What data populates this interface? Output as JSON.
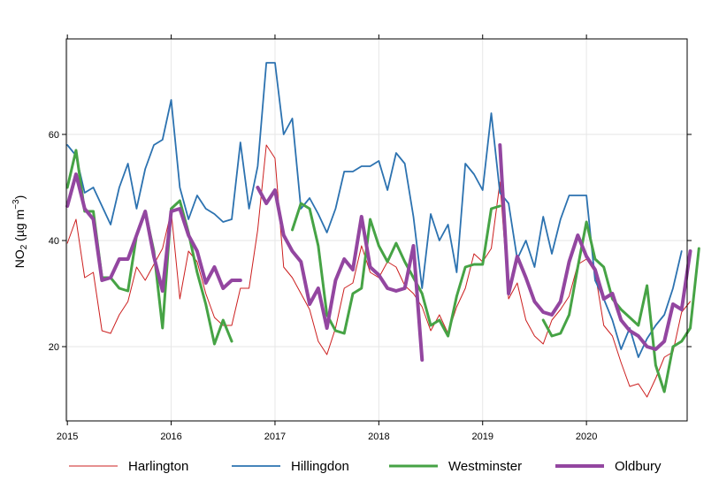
{
  "chart_data": {
    "type": "line",
    "title": "",
    "xlabel": "",
    "ylabel": {
      "main": "NO",
      "sub": "2",
      "unit_pre": " (µg m",
      "sup": "−3",
      "unit_post": ")"
    },
    "xlim": [
      2014.99,
      2020.97
    ],
    "ylim": [
      6,
      78
    ],
    "grid": true,
    "legend_position": "bottom",
    "x_ticks": [
      {
        "value": 2015,
        "label": "2015"
      },
      {
        "value": 2016,
        "label": "2016"
      },
      {
        "value": 2017,
        "label": "2017"
      },
      {
        "value": 2018,
        "label": "2018"
      },
      {
        "value": 2019,
        "label": "2019"
      },
      {
        "value": 2020,
        "label": "2020"
      }
    ],
    "y_ticks": [
      {
        "value": 20,
        "label": "20"
      },
      {
        "value": 40,
        "label": "40"
      },
      {
        "value": 60,
        "label": "60"
      }
    ],
    "x_start_year": 2015,
    "series": [
      {
        "name": "Harlington",
        "color": "#cc1f1f",
        "width": 1,
        "values": [
          39.5,
          44,
          33,
          34,
          23,
          22.5,
          26,
          28.5,
          35,
          32.5,
          35.5,
          38.5,
          45.5,
          29,
          38,
          36,
          30,
          25.5,
          24,
          24,
          31,
          31,
          42,
          58,
          55.5,
          35,
          33,
          30,
          27,
          21,
          18.5,
          23.5,
          31,
          32,
          39,
          34,
          33,
          36,
          35,
          31.5,
          30,
          27.5,
          23,
          26,
          22.5,
          27.5,
          31,
          37.5,
          36,
          38.5,
          51,
          29,
          32,
          25,
          22,
          20.5,
          25,
          27,
          29.5,
          35.5,
          36.5,
          34,
          24,
          22,
          17,
          12.5,
          13,
          10.5,
          14,
          18,
          19,
          26.5,
          28.5
        ]
      },
      {
        "name": "Hillingdon",
        "color": "#2c72b0",
        "width": 1.8,
        "values": [
          58,
          56,
          49,
          50,
          46.5,
          43,
          50,
          54.5,
          46,
          53.5,
          58,
          59,
          66.5,
          50,
          44,
          48.5,
          46,
          45,
          43.5,
          44,
          58.5,
          46,
          54,
          73.5,
          73.5,
          60,
          63,
          46,
          48,
          45,
          41.5,
          46,
          53,
          53,
          54,
          54,
          55,
          49.5,
          56.5,
          54.5,
          44.5,
          31,
          45,
          40,
          43,
          34,
          54.5,
          52.5,
          49.5,
          64,
          49,
          47,
          36.5,
          40,
          35,
          44.5,
          37.5,
          44,
          48.5,
          48.5,
          48.5,
          32.5,
          29,
          25,
          19.5,
          23.5,
          18,
          21.5,
          24,
          26,
          31,
          38
        ]
      },
      {
        "name": "Westminster",
        "color": "#46a345",
        "width": 3,
        "values": [
          50,
          57,
          45.5,
          45.5,
          33,
          33,
          31,
          30.5,
          41,
          45.5,
          38,
          23.5,
          46,
          47.5,
          41.5,
          34,
          28,
          20.5,
          25,
          21,
          null,
          null,
          null,
          null,
          null,
          null,
          42,
          47,
          46,
          39,
          26,
          23,
          22.5,
          30,
          31,
          44,
          39,
          36,
          39.5,
          36,
          33,
          30,
          24,
          25,
          22,
          29.5,
          35,
          35.5,
          35.5,
          46,
          46.5,
          null,
          null,
          null,
          null,
          25,
          22,
          22.5,
          26,
          35,
          43.5,
          36.5,
          35,
          29,
          27,
          25.5,
          24,
          31.5,
          16.5,
          11.5,
          20,
          21,
          23.5,
          38.5
        ]
      },
      {
        "name": "Oldbury",
        "color": "#9346a0",
        "width": 4,
        "values": [
          46.5,
          52.5,
          46,
          44,
          32.5,
          33,
          36.5,
          36.5,
          41,
          45.5,
          37,
          30.5,
          45.5,
          46,
          41,
          38,
          32,
          35,
          31,
          32.5,
          32.5,
          null,
          50,
          47,
          49.5,
          41,
          38,
          36,
          28,
          31,
          23.5,
          32.5,
          36.5,
          34.5,
          44.5,
          35,
          33.5,
          31,
          30.5,
          31,
          39,
          17.5,
          null,
          null,
          null,
          null,
          null,
          null,
          null,
          null,
          58,
          30,
          37,
          33,
          28.5,
          26.5,
          26,
          28.5,
          36,
          41,
          37,
          34.5,
          29,
          30,
          25,
          23,
          22,
          20,
          19.5,
          21,
          28,
          27,
          38
        ]
      }
    ]
  }
}
